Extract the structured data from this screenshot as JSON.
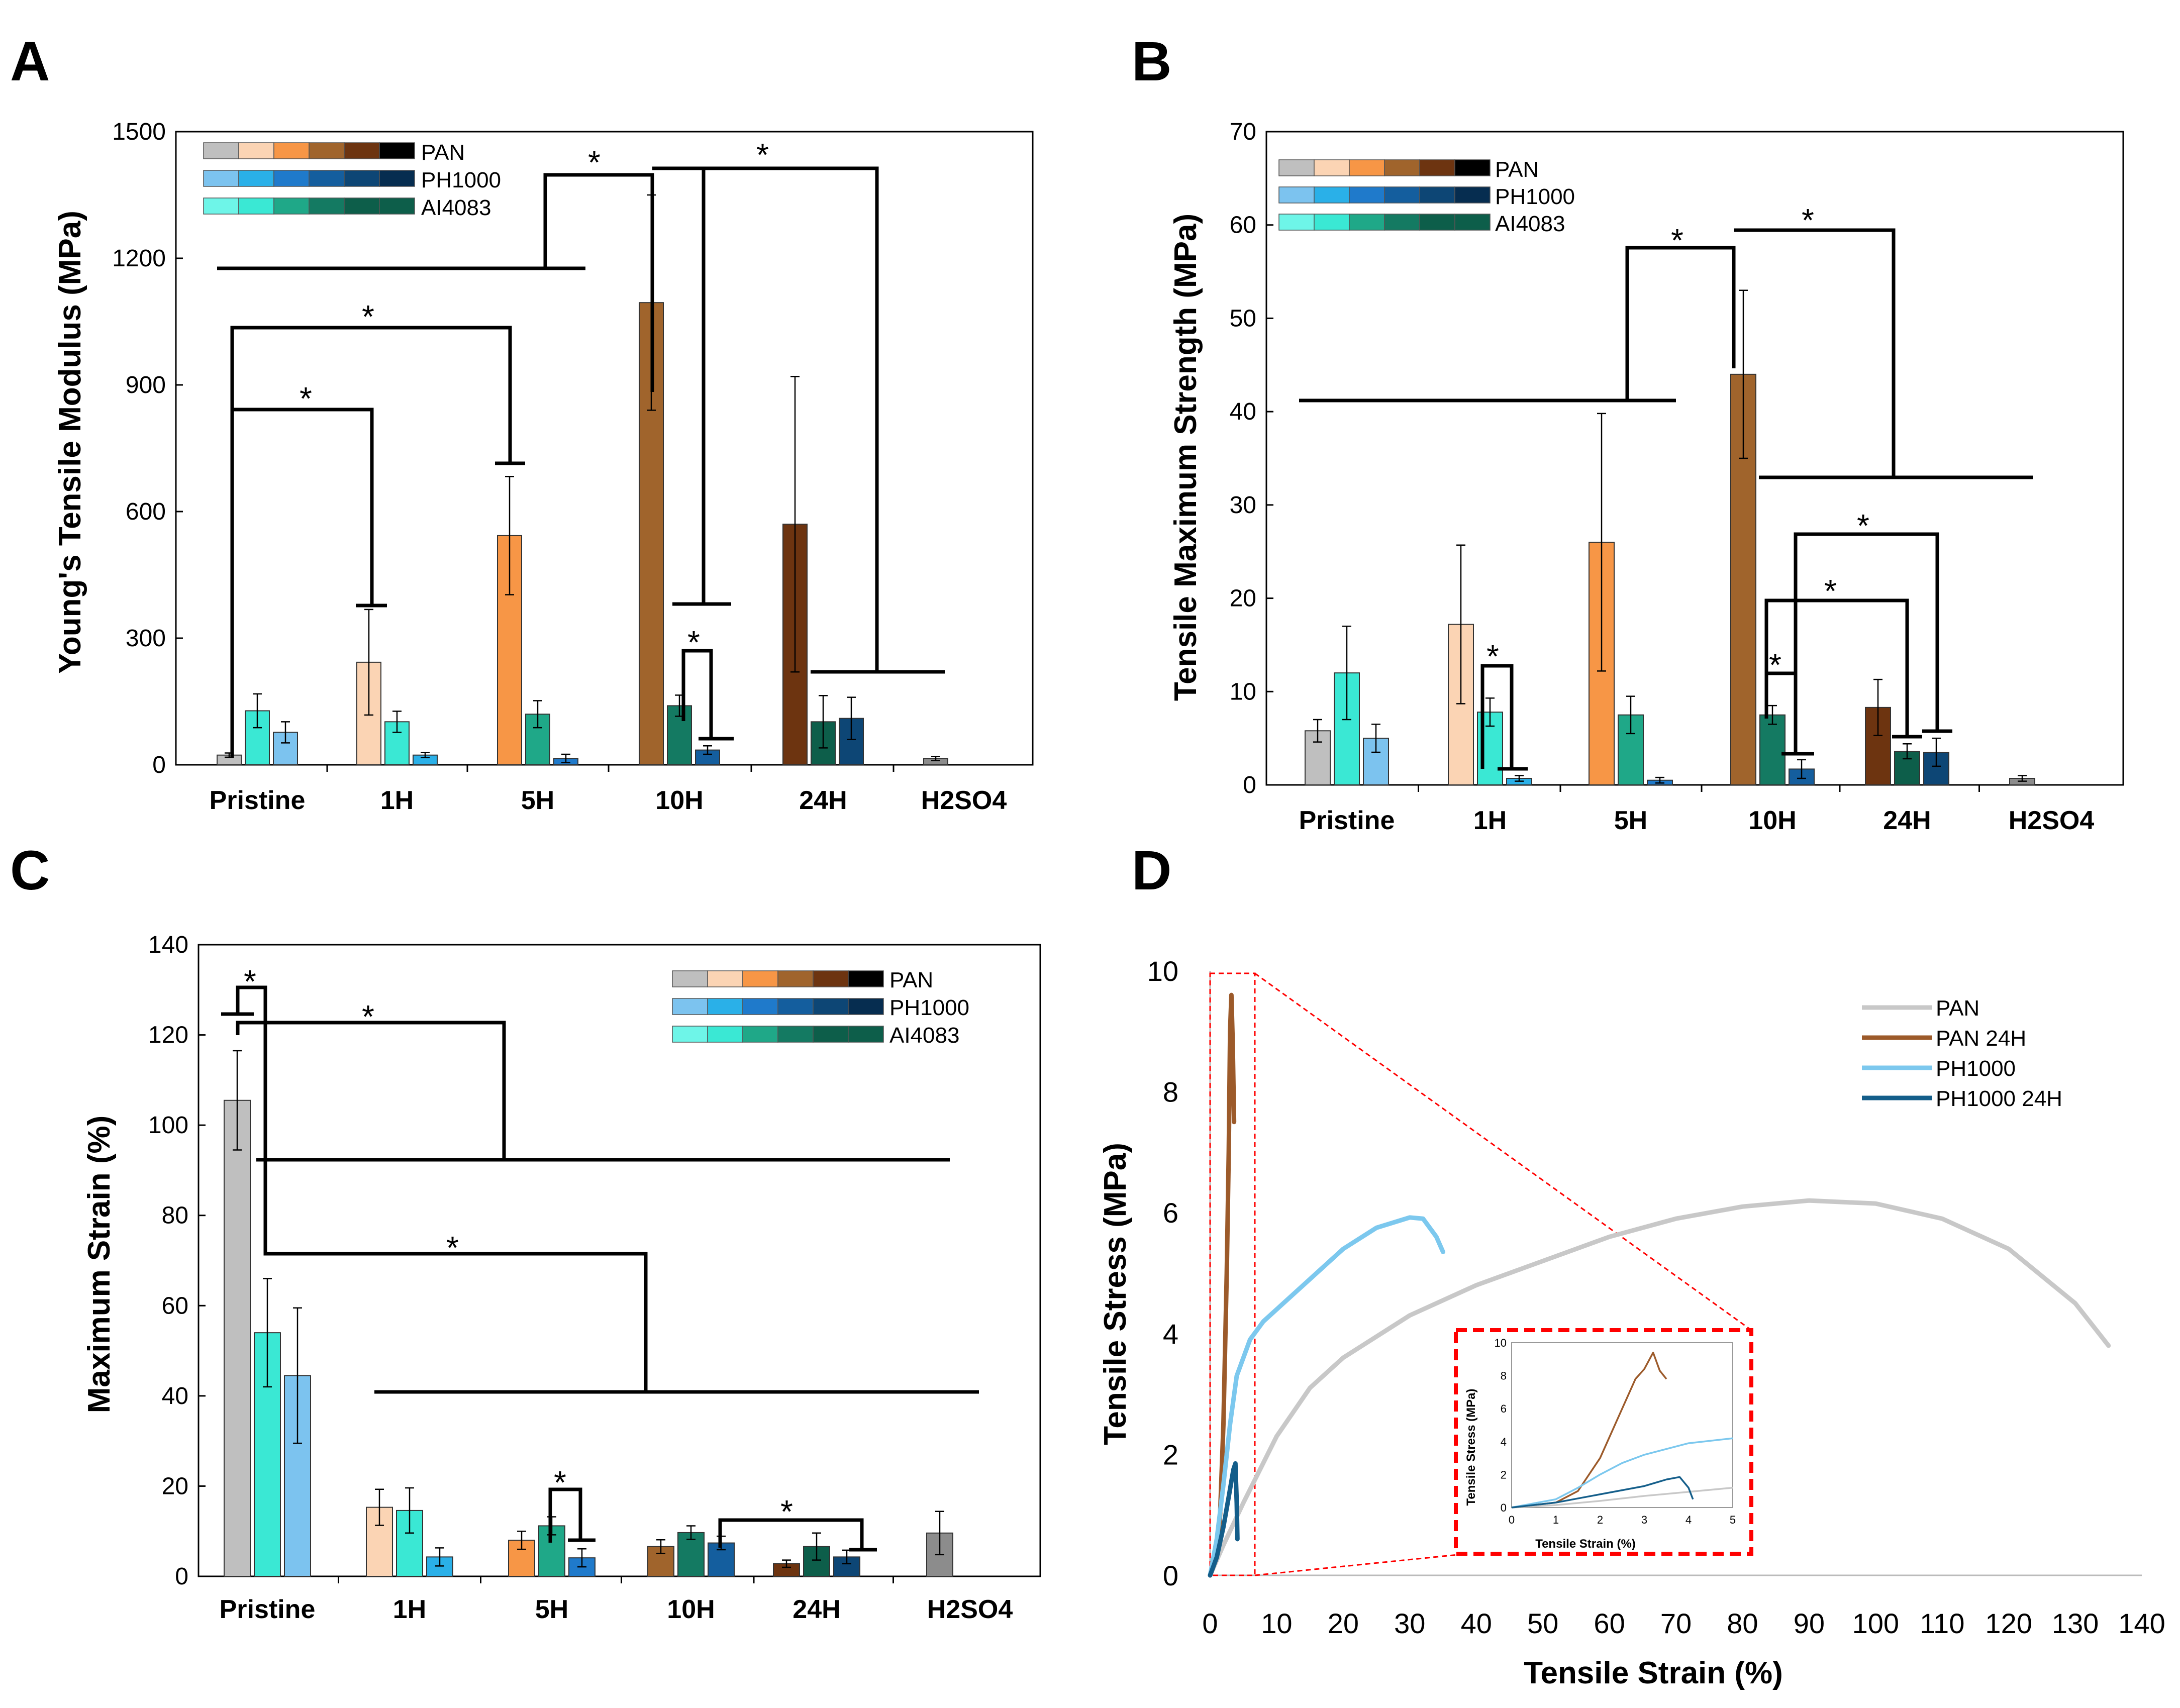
{
  "colors": {
    "PAN": [
      "#bfbfbf",
      "#fbd4b4",
      "#f79646",
      "#a0642c",
      "#6d3410",
      "#000000"
    ],
    "PH1000": [
      "#7cc3ef",
      "#2ab0e8",
      "#1f7acb",
      "#145e9e",
      "#0d4675",
      "#062d50"
    ],
    "AI4083": [
      "#6ef5e8",
      "#3ae8d4",
      "#1fa888",
      "#147a62",
      "#0d5e4a",
      "#0d5e4a"
    ],
    "h2so4": "#8c8c8c",
    "curve_pan": "#c8c8c8",
    "curve_pan24": "#9c5a2a",
    "curve_ph1000": "#7cc8ee",
    "curve_ph1000_24": "#145e8a",
    "inset_border": "#ff0000"
  },
  "chart_data": [
    {
      "panel": "A",
      "type": "bar",
      "ylabel": "Young's Tensile Modulus (MPa)",
      "ylim": [
        0,
        1500
      ],
      "yticks": [
        "0",
        "300",
        "600",
        "900",
        "1200",
        "1500"
      ],
      "categories": [
        "Pristine",
        "1H",
        "5H",
        "10H",
        "24H",
        "H2SO4"
      ],
      "legend": [
        "PAN",
        "PH1000",
        "AI4083"
      ],
      "bars": [
        {
          "cat": 0,
          "slot": 0,
          "value": 23,
          "err": 5,
          "color": "#bfbfbf"
        },
        {
          "cat": 0,
          "slot": 1,
          "value": 128,
          "err": 40,
          "color": "#3ae8d4"
        },
        {
          "cat": 0,
          "slot": 2,
          "value": 77,
          "err": 25,
          "color": "#7cc3ef"
        },
        {
          "cat": 1,
          "slot": 0,
          "value": 243,
          "err": 125,
          "color": "#fbd4b4"
        },
        {
          "cat": 1,
          "slot": 1,
          "value": 102,
          "err": 25,
          "color": "#3ae8d4"
        },
        {
          "cat": 1,
          "slot": 2,
          "value": 23,
          "err": 6,
          "color": "#2ab0e8"
        },
        {
          "cat": 2,
          "slot": 0,
          "value": 543,
          "err": 140,
          "color": "#f79646"
        },
        {
          "cat": 2,
          "slot": 1,
          "value": 120,
          "err": 32,
          "color": "#1fa888"
        },
        {
          "cat": 2,
          "slot": 2,
          "value": 15,
          "err": 10,
          "color": "#1f7acb"
        },
        {
          "cat": 3,
          "slot": 0,
          "value": 1095,
          "err": 255,
          "color": "#a0642c"
        },
        {
          "cat": 3,
          "slot": 1,
          "value": 140,
          "err": 25,
          "color": "#147a62"
        },
        {
          "cat": 3,
          "slot": 2,
          "value": 35,
          "err": 10,
          "color": "#145e9e"
        },
        {
          "cat": 4,
          "slot": 0,
          "value": 570,
          "err": 350,
          "color": "#6d3410"
        },
        {
          "cat": 4,
          "slot": 1,
          "value": 102,
          "err": 62,
          "color": "#0d5e4a"
        },
        {
          "cat": 4,
          "slot": 2,
          "value": 110,
          "err": 50,
          "color": "#0d4675"
        },
        {
          "cat": 5,
          "slot": 0,
          "value": 15,
          "err": 5,
          "color": "#8c8c8c"
        }
      ],
      "significance": [
        {
          "from": "Pristine",
          "to": "1H",
          "label": "*"
        },
        {
          "from": "Pristine",
          "to": "5H",
          "label": "*"
        },
        {
          "from": "10H",
          "to": "Pristine-5H",
          "label": "*"
        },
        {
          "from": "10H",
          "to": "10H-24H",
          "label": "*"
        },
        {
          "from": "10H AI4083",
          "to": "10H PH1000",
          "label": "*"
        }
      ]
    },
    {
      "panel": "B",
      "type": "bar",
      "ylabel": "Tensile Maximum Strength (MPa)",
      "ylim": [
        0,
        70
      ],
      "yticks": [
        "0",
        "10",
        "20",
        "30",
        "40",
        "50",
        "60",
        "70"
      ],
      "categories": [
        "Pristine",
        "1H",
        "5H",
        "10H",
        "24H",
        "H2SO4"
      ],
      "legend": [
        "PAN",
        "PH1000",
        "AI4083"
      ],
      "bars": [
        {
          "cat": 0,
          "slot": 0,
          "value": 5.8,
          "err": 1.2,
          "color": "#bfbfbf"
        },
        {
          "cat": 0,
          "slot": 1,
          "value": 12,
          "err": 5,
          "color": "#3ae8d4"
        },
        {
          "cat": 0,
          "slot": 2,
          "value": 5,
          "err": 1.5,
          "color": "#7cc3ef"
        },
        {
          "cat": 1,
          "slot": 0,
          "value": 17.2,
          "err": 8.5,
          "color": "#fbd4b4"
        },
        {
          "cat": 1,
          "slot": 1,
          "value": 7.8,
          "err": 1.5,
          "color": "#3ae8d4"
        },
        {
          "cat": 1,
          "slot": 2,
          "value": 0.7,
          "err": 0.3,
          "color": "#2ab0e8"
        },
        {
          "cat": 2,
          "slot": 0,
          "value": 26,
          "err": 13.8,
          "color": "#f79646"
        },
        {
          "cat": 2,
          "slot": 1,
          "value": 7.5,
          "err": 2,
          "color": "#1fa888"
        },
        {
          "cat": 2,
          "slot": 2,
          "value": 0.5,
          "err": 0.3,
          "color": "#1f7acb"
        },
        {
          "cat": 3,
          "slot": 0,
          "value": 44,
          "err": 9,
          "color": "#a0642c"
        },
        {
          "cat": 3,
          "slot": 1,
          "value": 7.5,
          "err": 1,
          "color": "#147a62"
        },
        {
          "cat": 3,
          "slot": 2,
          "value": 1.7,
          "err": 1,
          "color": "#145e9e"
        },
        {
          "cat": 4,
          "slot": 0,
          "value": 8.3,
          "err": 3,
          "color": "#6d3410"
        },
        {
          "cat": 4,
          "slot": 1,
          "value": 3.6,
          "err": 0.8,
          "color": "#0d5e4a"
        },
        {
          "cat": 4,
          "slot": 2,
          "value": 3.5,
          "err": 1.5,
          "color": "#0d4675"
        },
        {
          "cat": 5,
          "slot": 0,
          "value": 0.7,
          "err": 0.3,
          "color": "#8c8c8c"
        }
      ],
      "significance": [
        {
          "from": "10H",
          "to": "Pristine-5H",
          "label": "*"
        },
        {
          "from": "10H",
          "to": "10H-24H",
          "label": "*"
        },
        {
          "from": "1H AI4083",
          "to": "1H PH1000",
          "label": "*"
        },
        {
          "from": "10H AI4083",
          "to": "10H PH1000",
          "label": "*"
        },
        {
          "from": "10H AI4083",
          "to": "24H AI4083",
          "label": "*"
        },
        {
          "from": "10H PH1000",
          "to": "24H PH1000",
          "label": "*"
        }
      ]
    },
    {
      "panel": "C",
      "type": "bar",
      "ylabel": "Maximum Strain (%)",
      "ylim": [
        0,
        140
      ],
      "yticks": [
        "0",
        "20",
        "40",
        "60",
        "80",
        "100",
        "120",
        "140"
      ],
      "categories": [
        "Pristine",
        "1H",
        "5H",
        "10H",
        "24H",
        "H2SO4"
      ],
      "legend": [
        "PAN",
        "PH1000",
        "AI4083"
      ],
      "bars": [
        {
          "cat": 0,
          "slot": 0,
          "value": 105.5,
          "err": 11,
          "color": "#bfbfbf"
        },
        {
          "cat": 0,
          "slot": 1,
          "value": 54,
          "err": 12,
          "color": "#3ae8d4"
        },
        {
          "cat": 0,
          "slot": 2,
          "value": 44.5,
          "err": 15,
          "color": "#7cc3ef"
        },
        {
          "cat": 1,
          "slot": 0,
          "value": 15.3,
          "err": 4,
          "color": "#fbd4b4"
        },
        {
          "cat": 1,
          "slot": 1,
          "value": 14.6,
          "err": 5,
          "color": "#3ae8d4"
        },
        {
          "cat": 1,
          "slot": 2,
          "value": 4.3,
          "err": 2,
          "color": "#2ab0e8"
        },
        {
          "cat": 2,
          "slot": 0,
          "value": 8,
          "err": 2,
          "color": "#f79646"
        },
        {
          "cat": 2,
          "slot": 1,
          "value": 11.2,
          "err": 2,
          "color": "#1fa888"
        },
        {
          "cat": 2,
          "slot": 2,
          "value": 4.1,
          "err": 2,
          "color": "#1f7acb"
        },
        {
          "cat": 3,
          "slot": 0,
          "value": 6.6,
          "err": 1.5,
          "color": "#a0642c"
        },
        {
          "cat": 3,
          "slot": 1,
          "value": 9.7,
          "err": 1.5,
          "color": "#147a62"
        },
        {
          "cat": 3,
          "slot": 2,
          "value": 7.4,
          "err": 1.5,
          "color": "#145e9e"
        },
        {
          "cat": 4,
          "slot": 0,
          "value": 2.8,
          "err": 0.8,
          "color": "#6d3410"
        },
        {
          "cat": 4,
          "slot": 1,
          "value": 6.6,
          "err": 3,
          "color": "#0d5e4a"
        },
        {
          "cat": 4,
          "slot": 2,
          "value": 4.3,
          "err": 1.5,
          "color": "#0d4675"
        },
        {
          "cat": 5,
          "slot": 0,
          "value": 9.6,
          "err": 4.8,
          "color": "#8c8c8c"
        }
      ],
      "significance": [
        {
          "from": "Pristine PAN",
          "to": "Pristine AI4083",
          "label": "*"
        },
        {
          "from": "Pristine PAN",
          "to": "1H-H2SO4",
          "label": "*"
        },
        {
          "from": "Pristine AI4083",
          "to": "1H-H2SO4",
          "label": "*"
        },
        {
          "from": "5H AI4083",
          "to": "5H PH1000",
          "label": "*"
        },
        {
          "from": "10H PH1000",
          "to": "24H PH1000",
          "label": "*"
        }
      ]
    },
    {
      "panel": "D",
      "type": "line",
      "xlabel": "Tensile Strain (%)",
      "ylabel": "Tensile Stress (MPa)",
      "xlim": [
        0,
        140
      ],
      "ylim": [
        0,
        10
      ],
      "xticks": [
        "0",
        "10",
        "20",
        "30",
        "40",
        "50",
        "60",
        "70",
        "80",
        "90",
        "100",
        "110",
        "120",
        "130",
        "140"
      ],
      "yticks": [
        "0",
        "2",
        "4",
        "6",
        "8",
        "10"
      ],
      "series": [
        {
          "name": "PAN",
          "color": "#c8c8c8",
          "points": [
            [
              0,
              0
            ],
            [
              2,
              0.5
            ],
            [
              5,
              1.2
            ],
            [
              10,
              2.3
            ],
            [
              15,
              3.1
            ],
            [
              20,
              3.6
            ],
            [
              30,
              4.3
            ],
            [
              40,
              4.8
            ],
            [
              50,
              5.2
            ],
            [
              60,
              5.6
            ],
            [
              70,
              5.9
            ],
            [
              80,
              6.1
            ],
            [
              90,
              6.2
            ],
            [
              100,
              6.15
            ],
            [
              110,
              5.9
            ],
            [
              120,
              5.4
            ],
            [
              130,
              4.5
            ],
            [
              135,
              3.8
            ]
          ]
        },
        {
          "name": "PAN 24H",
          "color": "#9c5a2a",
          "points": [
            [
              0,
              0
            ],
            [
              1,
              0.3
            ],
            [
              1.5,
              1.0
            ],
            [
              2,
              2.5
            ],
            [
              2.5,
              5.0
            ],
            [
              2.8,
              7.0
            ],
            [
              3.0,
              9.0
            ],
            [
              3.2,
              9.6
            ],
            [
              3.4,
              8.8
            ],
            [
              3.6,
              7.5
            ]
          ]
        },
        {
          "name": "PH1000",
          "color": "#7cc8ee",
          "points": [
            [
              0,
              0
            ],
            [
              1,
              0.6
            ],
            [
              2,
              1.5
            ],
            [
              3,
              2.5
            ],
            [
              4,
              3.3
            ],
            [
              6,
              3.9
            ],
            [
              8,
              4.2
            ],
            [
              10,
              4.4
            ],
            [
              15,
              4.9
            ],
            [
              20,
              5.4
            ],
            [
              25,
              5.75
            ],
            [
              30,
              5.92
            ],
            [
              32,
              5.9
            ],
            [
              34,
              5.6
            ],
            [
              35,
              5.35
            ]
          ]
        },
        {
          "name": "PH1000 24H",
          "color": "#145e8a",
          "points": [
            [
              0,
              0
            ],
            [
              1,
              0.3
            ],
            [
              2,
              0.8
            ],
            [
              2.8,
              1.3
            ],
            [
              3.5,
              1.75
            ],
            [
              3.8,
              1.85
            ],
            [
              4.0,
              1.2
            ],
            [
              4.1,
              0.6
            ]
          ]
        }
      ],
      "inset": {
        "xlabel": "Tensile Strain (%)",
        "ylabel": "Tensile Stress (MPa)",
        "xlim": [
          0,
          5
        ],
        "ylim": [
          0,
          10
        ],
        "xticks": [
          "0",
          "1",
          "2",
          "3",
          "4",
          "5"
        ],
        "yticks": [
          "0",
          "2",
          "4",
          "6",
          "8",
          "10"
        ],
        "series": [
          {
            "name": "PAN",
            "color": "#c8c8c8",
            "points": [
              [
                0,
                0
              ],
              [
                1,
                0.15
              ],
              [
                2,
                0.4
              ],
              [
                3,
                0.7
              ],
              [
                4,
                0.95
              ],
              [
                5,
                1.2
              ]
            ]
          },
          {
            "name": "PAN 24H",
            "color": "#9c5a2a",
            "points": [
              [
                0,
                0
              ],
              [
                1,
                0.3
              ],
              [
                1.5,
                1.0
              ],
              [
                2,
                3.0
              ],
              [
                2.5,
                6.0
              ],
              [
                2.8,
                7.8
              ],
              [
                3.0,
                8.4
              ],
              [
                3.2,
                9.4
              ],
              [
                3.35,
                8.3
              ],
              [
                3.5,
                7.8
              ]
            ]
          },
          {
            "name": "PH1000",
            "color": "#7cc8ee",
            "points": [
              [
                0,
                0
              ],
              [
                1,
                0.5
              ],
              [
                1.5,
                1.2
              ],
              [
                2,
                2.0
              ],
              [
                2.5,
                2.7
              ],
              [
                3,
                3.2
              ],
              [
                4,
                3.9
              ],
              [
                5,
                4.2
              ]
            ]
          },
          {
            "name": "PH1000 24H",
            "color": "#145e8a",
            "points": [
              [
                0,
                0
              ],
              [
                1,
                0.3
              ],
              [
                2,
                0.8
              ],
              [
                3,
                1.3
              ],
              [
                3.5,
                1.7
              ],
              [
                3.8,
                1.85
              ],
              [
                4.0,
                1.2
              ],
              [
                4.1,
                0.5
              ]
            ]
          }
        ]
      }
    }
  ]
}
